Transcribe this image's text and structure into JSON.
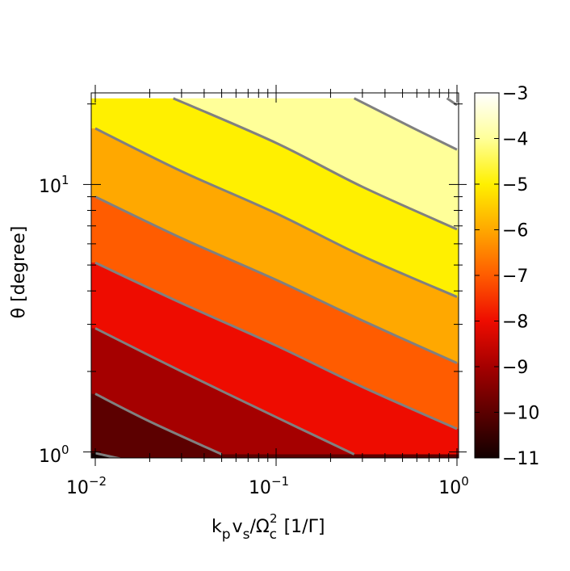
{
  "chart_data": {
    "type": "contour",
    "x_scale": "log",
    "y_scale": "log",
    "xlim": [
      0.01,
      1.0
    ],
    "ylim": [
      0.95,
      22
    ],
    "xlabel": {
      "k": "k",
      "p": "p",
      "v": "v",
      "s": "s",
      "slash_omega": "/Ω",
      "c": "c",
      "two": "2",
      "unit": "[1/Γ]"
    },
    "ylabel": "θ [degree]",
    "x_ticks": [
      {
        "value": 0.01,
        "base": "10",
        "exp": "−2"
      },
      {
        "value": 0.1,
        "base": "10",
        "exp": "−1"
      },
      {
        "value": 1,
        "base": "10",
        "exp": "0"
      }
    ],
    "y_ticks": [
      {
        "value": 1,
        "base": "10",
        "exp": "0"
      },
      {
        "value": 10,
        "base": "10",
        "exp": "1"
      }
    ],
    "colorbar": {
      "range": [
        -11,
        -3
      ],
      "ticks": [
        "−3",
        "−4",
        "−5",
        "−6",
        "−7",
        "−8",
        "−9",
        "−10",
        "−11"
      ],
      "tick_values": [
        -3,
        -4,
        -5,
        -6,
        -7,
        -8,
        -9,
        -10,
        -11
      ]
    },
    "contour_levels": [
      -11,
      -10,
      -9,
      -8,
      -7,
      -6,
      -5,
      -4,
      -3
    ],
    "contour_line_color": "#808080",
    "fill_colors": {
      "-11": "#120000",
      "-10": "#5c0000",
      "-9": "#a50000",
      "-8": "#ee0c00",
      "-7": "#ff5c00",
      "-6": "#ffa800",
      "-5": "#fff000",
      "-4": "#ffff99",
      "-3": "#ffffff"
    },
    "level_points": [
      {
        "level": -10,
        "points": [
          [
            0.01,
            0.99
          ],
          [
            0.022,
            0.88
          ]
        ]
      },
      {
        "level": -9,
        "points": [
          [
            0.01,
            1.65
          ],
          [
            0.02,
            1.3
          ],
          [
            0.05,
            0.98
          ]
        ]
      },
      {
        "level": -8,
        "points": [
          [
            0.01,
            2.9
          ],
          [
            0.03,
            2.0
          ],
          [
            0.1,
            1.35
          ],
          [
            0.27,
            0.98
          ]
        ]
      },
      {
        "level": -7,
        "points": [
          [
            0.01,
            5.1
          ],
          [
            0.03,
            3.6
          ],
          [
            0.1,
            2.5
          ],
          [
            0.3,
            1.75
          ],
          [
            1.0,
            1.22
          ]
        ]
      },
      {
        "level": -6,
        "points": [
          [
            0.01,
            9.0
          ],
          [
            0.03,
            6.3
          ],
          [
            0.1,
            4.4
          ],
          [
            0.3,
            3.1
          ],
          [
            1.0,
            2.15
          ]
        ]
      },
      {
        "level": -5,
        "points": [
          [
            0.01,
            16.2
          ],
          [
            0.03,
            11.2
          ],
          [
            0.1,
            7.8
          ],
          [
            0.3,
            5.4
          ],
          [
            1.0,
            3.8
          ]
        ]
      },
      {
        "level": -4,
        "points": [
          [
            0.027,
            21
          ],
          [
            0.1,
            14.3
          ],
          [
            0.3,
            9.8
          ],
          [
            1.0,
            6.8
          ]
        ]
      },
      {
        "level": -3,
        "points": [
          [
            0.27,
            21
          ],
          [
            0.6,
            16
          ],
          [
            1.0,
            13.5
          ]
        ]
      },
      {
        "level": -2,
        "points": [
          [
            0.88,
            21
          ],
          [
            1.0,
            19.8
          ]
        ]
      }
    ]
  }
}
